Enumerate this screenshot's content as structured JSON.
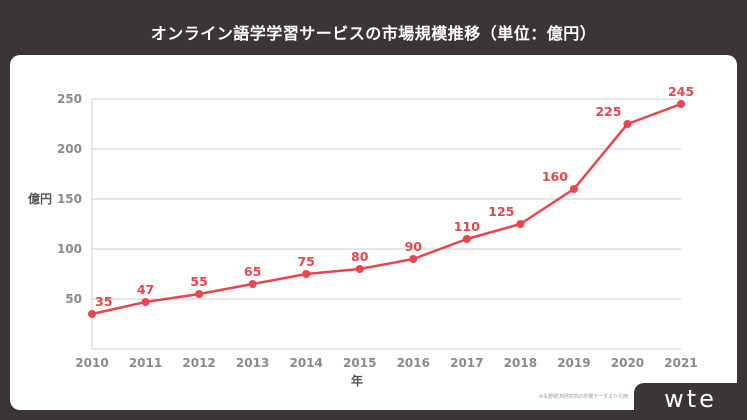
{
  "title": "オンライン語学学習サービスの市場規模推移（単位：億円）",
  "source_note": "※矢野経済研究所の市場データより引用",
  "watermark": "wte",
  "colors": {
    "line": "#e8454d",
    "grid": "#cfcfcf",
    "background": "#3b3635"
  },
  "chart_data": {
    "type": "line",
    "x": [
      "2010",
      "2011",
      "2012",
      "2013",
      "2014",
      "2015",
      "2016",
      "2017",
      "2018",
      "2019",
      "2020",
      "2021"
    ],
    "series": [
      {
        "values": [
          35,
          47,
          55,
          65,
          75,
          80,
          90,
          110,
          125,
          160,
          225,
          245
        ]
      }
    ],
    "xlabel": "年",
    "ylabel": "億円",
    "yticks": [
      50,
      100,
      150,
      200,
      250
    ],
    "ylim": [
      0,
      250
    ],
    "grid": true,
    "data_labels": true
  }
}
